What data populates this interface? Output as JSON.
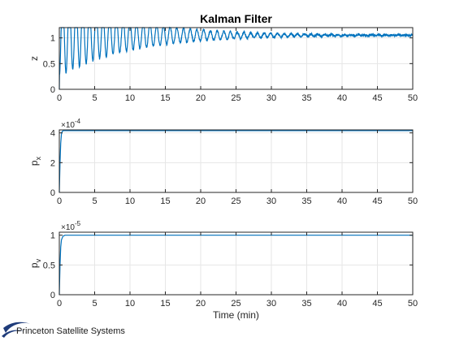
{
  "colors": {
    "line": "#0072bd",
    "grid": "#e6e6e6",
    "axis": "#262626",
    "logo": "#1f3c7a"
  },
  "logo": {
    "text": "Princeton Satellite Systems",
    "icon": "swoosh-logo-icon"
  },
  "chart_data": [
    {
      "type": "line",
      "title": "Kalman Filter",
      "ylabel": "z",
      "xlabel": "",
      "xlim": [
        0,
        50
      ],
      "ylim": [
        0,
        1.2
      ],
      "xticks": [
        0,
        5,
        10,
        15,
        20,
        25,
        30,
        35,
        40,
        45,
        50
      ],
      "yticks": [
        0,
        0.5,
        1
      ],
      "ytick_labels": [
        "0",
        "0.5",
        "1"
      ],
      "exponent": "",
      "grid": true,
      "signal": {
        "form": "damped_oscillation",
        "mean": 1.05,
        "initial_amplitude": 0.8,
        "decay_time_min": 10,
        "period_min": 0.95,
        "noise_amplitude": 0.04
      },
      "x": [
        0,
        0.5,
        1,
        1.5,
        2,
        3,
        5,
        10,
        20,
        30,
        40,
        50
      ],
      "y": [
        0.0,
        1.2,
        0.25,
        1.2,
        0.35,
        1.2,
        1.2,
        1.2,
        1.1,
        1.08,
        1.06,
        1.0
      ]
    },
    {
      "type": "line",
      "title": "",
      "ylabel": "p_x",
      "ylabel_main": "p",
      "ylabel_sub": "x",
      "xlabel": "",
      "xlim": [
        0,
        50
      ],
      "ylim": [
        0,
        4.2
      ],
      "xticks": [
        0,
        5,
        10,
        15,
        20,
        25,
        30,
        35,
        40,
        45,
        50
      ],
      "yticks": [
        0,
        2,
        4
      ],
      "ytick_labels": [
        "0",
        "2",
        "4"
      ],
      "exponent_base": "×10",
      "exponent_power": "-4",
      "grid": true,
      "x": [
        0,
        0.1,
        0.2,
        0.3,
        0.4,
        0.6,
        1,
        50
      ],
      "y": [
        0,
        2.0,
        3.3,
        3.9,
        4.1,
        4.15,
        4.15,
        4.15
      ]
    },
    {
      "type": "line",
      "title": "",
      "ylabel": "p_v",
      "ylabel_main": "p",
      "ylabel_sub": "v",
      "xlabel": "Time (min)",
      "xlim": [
        0,
        50
      ],
      "ylim": [
        0,
        1.05
      ],
      "xticks": [
        0,
        5,
        10,
        15,
        20,
        25,
        30,
        35,
        40,
        45,
        50
      ],
      "yticks": [
        0,
        0.5,
        1
      ],
      "ytick_labels": [
        "0",
        "0.5",
        "1"
      ],
      "exponent_base": "×10",
      "exponent_power": "-5",
      "grid": true,
      "x": [
        0,
        0.1,
        0.2,
        0.3,
        0.5,
        0.8,
        1.2,
        50
      ],
      "y": [
        0,
        0.5,
        0.8,
        0.92,
        0.98,
        1.0,
        1.0,
        1.0
      ]
    }
  ]
}
